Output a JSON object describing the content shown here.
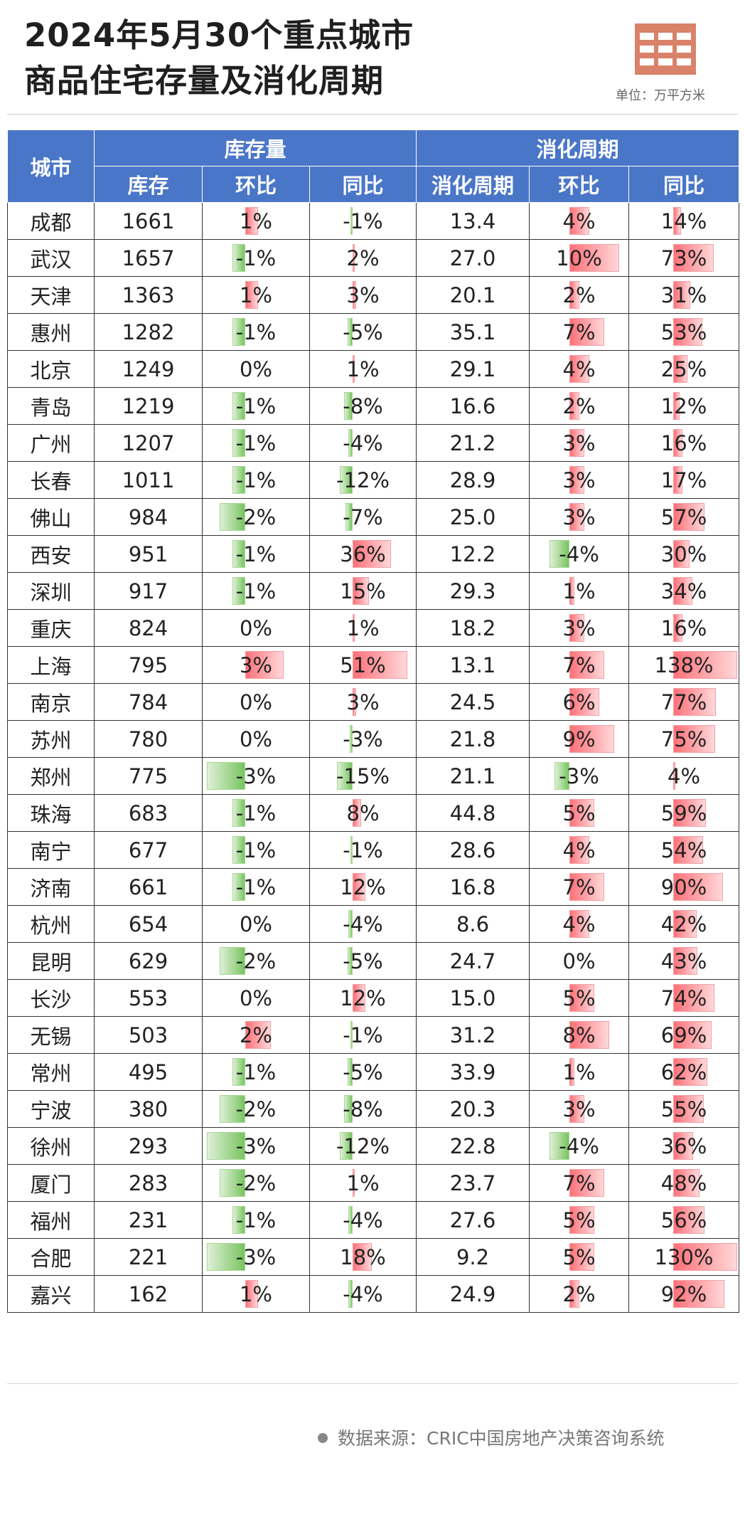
{
  "title_line1": "2024年5月30个重点城市",
  "title_line2": "商品住宅存量及消化周期",
  "unit": "单位：万平方米",
  "source": "数据来源：CRIC中国房地产决策咨询系统",
  "colors": {
    "header": "#4a76c8",
    "positive": "#ff6b74",
    "negative": "#6dbf55"
  },
  "chart_data": {
    "type": "table",
    "headers": {
      "city": "城市",
      "group1": "库存量",
      "group2": "消化周期",
      "cols": [
        "库存",
        "环比",
        "同比",
        "消化周期",
        "环比",
        "同比"
      ]
    },
    "rows": [
      {
        "city": "成都",
        "stock": "1661",
        "stock_mom": "1%",
        "stock_yoy": "-1%",
        "cycle": "13.4",
        "cycle_mom": "4%",
        "cycle_yoy": "14%"
      },
      {
        "city": "武汉",
        "stock": "1657",
        "stock_mom": "-1%",
        "stock_yoy": "2%",
        "cycle": "27.0",
        "cycle_mom": "10%",
        "cycle_yoy": "73%"
      },
      {
        "city": "天津",
        "stock": "1363",
        "stock_mom": "1%",
        "stock_yoy": "3%",
        "cycle": "20.1",
        "cycle_mom": "2%",
        "cycle_yoy": "31%"
      },
      {
        "city": "惠州",
        "stock": "1282",
        "stock_mom": "-1%",
        "stock_yoy": "-5%",
        "cycle": "35.1",
        "cycle_mom": "7%",
        "cycle_yoy": "53%"
      },
      {
        "city": "北京",
        "stock": "1249",
        "stock_mom": "0%",
        "stock_yoy": "1%",
        "cycle": "29.1",
        "cycle_mom": "4%",
        "cycle_yoy": "25%"
      },
      {
        "city": "青岛",
        "stock": "1219",
        "stock_mom": "-1%",
        "stock_yoy": "-8%",
        "cycle": "16.6",
        "cycle_mom": "2%",
        "cycle_yoy": "12%"
      },
      {
        "city": "广州",
        "stock": "1207",
        "stock_mom": "-1%",
        "stock_yoy": "-4%",
        "cycle": "21.2",
        "cycle_mom": "3%",
        "cycle_yoy": "16%"
      },
      {
        "city": "长春",
        "stock": "1011",
        "stock_mom": "-1%",
        "stock_yoy": "-12%",
        "cycle": "28.9",
        "cycle_mom": "3%",
        "cycle_yoy": "17%"
      },
      {
        "city": "佛山",
        "stock": "984",
        "stock_mom": "-2%",
        "stock_yoy": "-7%",
        "cycle": "25.0",
        "cycle_mom": "3%",
        "cycle_yoy": "57%"
      },
      {
        "city": "西安",
        "stock": "951",
        "stock_mom": "-1%",
        "stock_yoy": "36%",
        "cycle": "12.2",
        "cycle_mom": "-4%",
        "cycle_yoy": "30%"
      },
      {
        "city": "深圳",
        "stock": "917",
        "stock_mom": "-1%",
        "stock_yoy": "15%",
        "cycle": "29.3",
        "cycle_mom": "1%",
        "cycle_yoy": "34%"
      },
      {
        "city": "重庆",
        "stock": "824",
        "stock_mom": "0%",
        "stock_yoy": "1%",
        "cycle": "18.2",
        "cycle_mom": "3%",
        "cycle_yoy": "16%"
      },
      {
        "city": "上海",
        "stock": "795",
        "stock_mom": "3%",
        "stock_yoy": "51%",
        "cycle": "13.1",
        "cycle_mom": "7%",
        "cycle_yoy": "138%"
      },
      {
        "city": "南京",
        "stock": "784",
        "stock_mom": "0%",
        "stock_yoy": "3%",
        "cycle": "24.5",
        "cycle_mom": "6%",
        "cycle_yoy": "77%"
      },
      {
        "city": "苏州",
        "stock": "780",
        "stock_mom": "0%",
        "stock_yoy": "-3%",
        "cycle": "21.8",
        "cycle_mom": "9%",
        "cycle_yoy": "75%"
      },
      {
        "city": "郑州",
        "stock": "775",
        "stock_mom": "-3%",
        "stock_yoy": "-15%",
        "cycle": "21.1",
        "cycle_mom": "-3%",
        "cycle_yoy": "4%"
      },
      {
        "city": "珠海",
        "stock": "683",
        "stock_mom": "-1%",
        "stock_yoy": "8%",
        "cycle": "44.8",
        "cycle_mom": "5%",
        "cycle_yoy": "59%"
      },
      {
        "city": "南宁",
        "stock": "677",
        "stock_mom": "-1%",
        "stock_yoy": "-1%",
        "cycle": "28.6",
        "cycle_mom": "4%",
        "cycle_yoy": "54%"
      },
      {
        "city": "济南",
        "stock": "661",
        "stock_mom": "-1%",
        "stock_yoy": "12%",
        "cycle": "16.8",
        "cycle_mom": "7%",
        "cycle_yoy": "90%"
      },
      {
        "city": "杭州",
        "stock": "654",
        "stock_mom": "0%",
        "stock_yoy": "-4%",
        "cycle": "8.6",
        "cycle_mom": "4%",
        "cycle_yoy": "42%"
      },
      {
        "city": "昆明",
        "stock": "629",
        "stock_mom": "-2%",
        "stock_yoy": "-5%",
        "cycle": "24.7",
        "cycle_mom": "0%",
        "cycle_yoy": "43%"
      },
      {
        "city": "长沙",
        "stock": "553",
        "stock_mom": "0%",
        "stock_yoy": "12%",
        "cycle": "15.0",
        "cycle_mom": "5%",
        "cycle_yoy": "74%"
      },
      {
        "city": "无锡",
        "stock": "503",
        "stock_mom": "2%",
        "stock_yoy": "-1%",
        "cycle": "31.2",
        "cycle_mom": "8%",
        "cycle_yoy": "69%"
      },
      {
        "city": "常州",
        "stock": "495",
        "stock_mom": "-1%",
        "stock_yoy": "-5%",
        "cycle": "33.9",
        "cycle_mom": "1%",
        "cycle_yoy": "62%"
      },
      {
        "city": "宁波",
        "stock": "380",
        "stock_mom": "-2%",
        "stock_yoy": "-8%",
        "cycle": "20.3",
        "cycle_mom": "3%",
        "cycle_yoy": "55%"
      },
      {
        "city": "徐州",
        "stock": "293",
        "stock_mom": "-3%",
        "stock_yoy": "-12%",
        "cycle": "22.8",
        "cycle_mom": "-4%",
        "cycle_yoy": "36%"
      },
      {
        "city": "厦门",
        "stock": "283",
        "stock_mom": "-2%",
        "stock_yoy": "1%",
        "cycle": "23.7",
        "cycle_mom": "7%",
        "cycle_yoy": "48%"
      },
      {
        "city": "福州",
        "stock": "231",
        "stock_mom": "-1%",
        "stock_yoy": "-4%",
        "cycle": "27.6",
        "cycle_mom": "5%",
        "cycle_yoy": "56%"
      },
      {
        "city": "合肥",
        "stock": "221",
        "stock_mom": "-3%",
        "stock_yoy": "18%",
        "cycle": "9.2",
        "cycle_mom": "5%",
        "cycle_yoy": "130%"
      },
      {
        "city": "嘉兴",
        "stock": "162",
        "stock_mom": "1%",
        "stock_yoy": "-4%",
        "cycle": "24.9",
        "cycle_mom": "2%",
        "cycle_yoy": "92%"
      }
    ]
  }
}
